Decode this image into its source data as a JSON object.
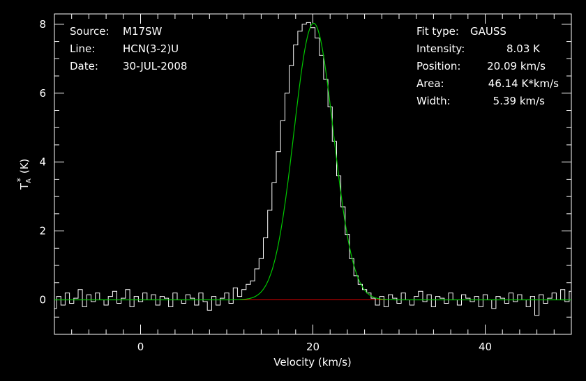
{
  "chart_data": {
    "type": "line",
    "xlabel": "Velocity (km/s)",
    "ylabel": "T",
    "ylabel_sub": "A",
    "ylabel_sup": "*",
    "ylabel_unit": "(K)",
    "xlim": [
      -10,
      50
    ],
    "ylim": [
      -1,
      8.3
    ],
    "xticks": [
      0,
      20,
      40
    ],
    "yticks": [
      0,
      2,
      4,
      6,
      8
    ],
    "grid": false,
    "colors": {
      "data": "#ffffff",
      "fit": "#00c800",
      "baseline": "#e00000",
      "axes": "#ffffff",
      "background": "#000000"
    },
    "info_left": [
      {
        "key": "Source:",
        "value": "M17SW"
      },
      {
        "key": "Line:",
        "value": "HCN(3-2)U"
      },
      {
        "key": "Date:",
        "value": "30-JUL-2008"
      }
    ],
    "info_right": [
      {
        "key": "Fit type:",
        "value": "GAUSS"
      },
      {
        "key": "Intensity:",
        "value": "8.03 K"
      },
      {
        "key": "Position:",
        "value": "20.09 km/s"
      },
      {
        "key": "Area:",
        "value": "46.14 K*km/s"
      },
      {
        "key": "Width:",
        "value": "5.39 km/s"
      }
    ],
    "fit": {
      "amplitude": 8.03,
      "center": 20.09,
      "fwhm": 5.39
    },
    "baseline": {
      "x": [
        11.5,
        28.5
      ],
      "y": 0
    },
    "series": [
      {
        "x": [
          -10.0,
          -9.5,
          -9.0,
          -8.5,
          -8.0,
          -7.5,
          -7.0,
          -6.5,
          -6.0,
          -5.5,
          -5.0,
          -4.5,
          -4.0,
          -3.5,
          -3.0,
          -2.5,
          -2.0,
          -1.5,
          -1.0,
          -0.5,
          0.0,
          0.5,
          1.0,
          1.5,
          2.0,
          2.5,
          3.0,
          3.5,
          4.0,
          4.5,
          5.0,
          5.5,
          6.0,
          6.5,
          7.0,
          7.5,
          8.0,
          8.5,
          9.0,
          9.5,
          10.0,
          10.5,
          11.0,
          11.5,
          12.0,
          12.5,
          13.0,
          13.5,
          14.0,
          14.5,
          15.0,
          15.5,
          16.0,
          16.5,
          17.0,
          17.5,
          18.0,
          18.5,
          19.0,
          19.5,
          20.0,
          20.5,
          21.0,
          21.5,
          22.0,
          22.5,
          23.0,
          23.5,
          24.0,
          24.5,
          25.0,
          25.5,
          26.0,
          26.5,
          27.0,
          27.5,
          28.0,
          28.5,
          29.0,
          29.5,
          30.0,
          30.5,
          31.0,
          31.5,
          32.0,
          32.5,
          33.0,
          33.5,
          34.0,
          34.5,
          35.0,
          35.5,
          36.0,
          36.5,
          37.0,
          37.5,
          38.0,
          38.5,
          39.0,
          39.5,
          40.0,
          40.5,
          41.0,
          41.5,
          42.0,
          42.5,
          43.0,
          43.5,
          44.0,
          44.5,
          45.0,
          45.5,
          46.0,
          46.5,
          47.0,
          47.5,
          48.0,
          48.5,
          49.0,
          49.5,
          50.0
        ],
        "y": [
          -0.25,
          0.1,
          -0.15,
          0.2,
          -0.1,
          0.05,
          0.3,
          -0.2,
          0.15,
          -0.05,
          0.2,
          0.0,
          -0.15,
          0.1,
          0.25,
          -0.1,
          0.05,
          0.3,
          -0.2,
          0.1,
          -0.05,
          0.2,
          0.0,
          0.15,
          -0.15,
          0.1,
          0.05,
          -0.2,
          0.2,
          0.0,
          -0.1,
          0.15,
          0.05,
          -0.15,
          0.2,
          -0.05,
          -0.3,
          0.1,
          -0.15,
          0.05,
          0.2,
          -0.1,
          0.35,
          0.1,
          0.3,
          0.45,
          0.55,
          0.9,
          1.2,
          1.8,
          2.6,
          3.4,
          4.3,
          5.2,
          6.0,
          6.8,
          7.4,
          7.8,
          8.0,
          8.05,
          7.9,
          7.6,
          7.1,
          6.4,
          5.6,
          4.6,
          3.6,
          2.7,
          1.9,
          1.2,
          0.7,
          0.45,
          0.3,
          0.2,
          0.05,
          -0.15,
          0.1,
          -0.2,
          0.15,
          0.05,
          -0.1,
          0.2,
          0.0,
          -0.15,
          0.1,
          0.25,
          -0.05,
          0.15,
          -0.2,
          0.1,
          0.05,
          -0.1,
          0.2,
          0.0,
          -0.15,
          0.15,
          0.05,
          -0.05,
          0.1,
          -0.2,
          0.15,
          0.0,
          -0.25,
          0.1,
          0.05,
          -0.1,
          0.2,
          -0.05,
          0.15,
          0.0,
          -0.2,
          0.1,
          -0.45,
          0.15,
          -0.1,
          0.05,
          0.2,
          0.0,
          0.3,
          -0.05,
          0.25
        ]
      }
    ]
  }
}
